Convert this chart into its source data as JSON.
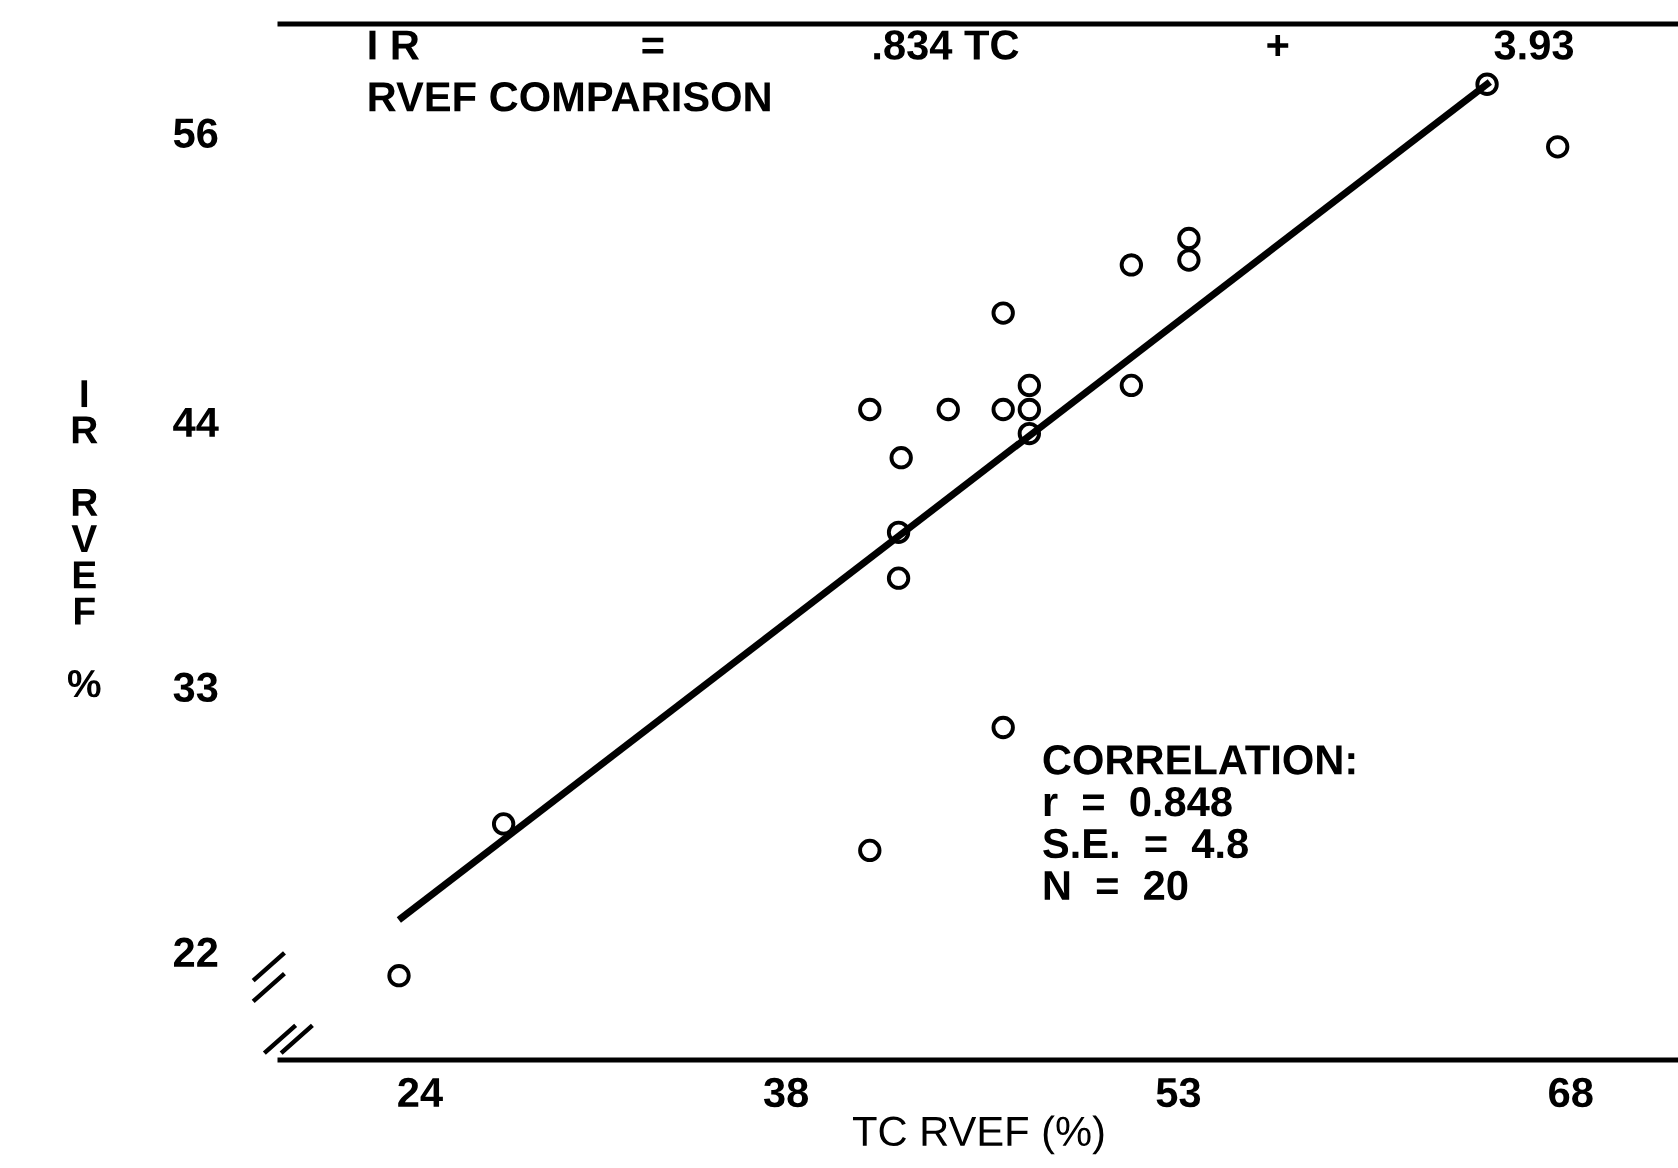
{
  "chart_data": {
    "type": "scatter",
    "xlabel": "TC RVEF (%)",
    "ylabel": "IR RVEF %",
    "xlim": [
      18.65,
      72.1
    ],
    "ylim": [
      17.5,
      60.5
    ],
    "xticks": [
      24,
      38,
      53,
      68
    ],
    "yticks": [
      22,
      33,
      44,
      56
    ],
    "marker": "circle",
    "grid": false,
    "legend": false,
    "series": [
      {
        "color": "#000000",
        "x": [
          23.2,
          27.2,
          41.2,
          46.3,
          42.3,
          42.3,
          42.4,
          41.2,
          44.2,
          46.3,
          47.3,
          47.3,
          47.3,
          46.3,
          51.2,
          51.2,
          53.4,
          53.4,
          64.8,
          67.5
        ],
        "values": [
          21.0,
          27.3,
          26.2,
          31.3,
          37.5,
          39.4,
          42.5,
          44.5,
          44.5,
          44.5,
          44.5,
          45.5,
          43.5,
          48.5,
          45.5,
          50.5,
          50.7,
          51.6,
          58.0,
          55.4
        ]
      },
      {
        "type": "line",
        "color": "#000000",
        "marker": "none",
        "line_style": "solid",
        "x": [
          23.3,
          64.8
        ],
        "values": [
          23.4,
          58.0
        ]
      }
    ],
    "annotations": [
      "I R        =        .834 TC        +        3.93",
      "RVEF COMPARISON",
      "CORRELATION:\nr  =  0.848\nS.E.  =  4.8\nN  =  20"
    ]
  }
}
